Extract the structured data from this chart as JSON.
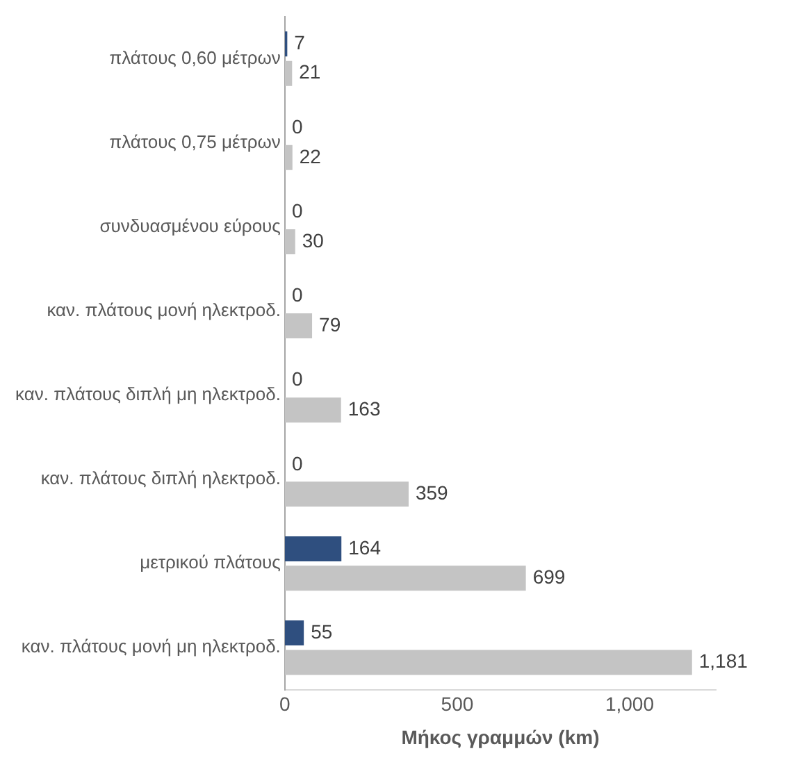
{
  "chart_data": {
    "type": "bar",
    "orientation": "horizontal",
    "xlabel": "Μήκος γραμμών (km)",
    "categories": [
      "πλάτους 0,60 μέτρων",
      "πλάτους 0,75 μέτρων",
      "συνδυασμένου εύρους",
      "καν. πλάτους μονή ηλεκτροδ.",
      "καν. πλάτους διπλή μη ηλεκτροδ.",
      "καν. πλάτους διπλή ηλεκτροδ.",
      "μετρικού πλάτους",
      "καν. πλάτους μονή μη ηλεκτροδ."
    ],
    "series": [
      {
        "color": "#2f4f7f",
        "values": [
          7,
          0,
          0,
          0,
          0,
          0,
          164,
          55
        ],
        "value_labels": [
          "7",
          "0",
          "0",
          "0",
          "0",
          "0",
          "164",
          "55"
        ]
      },
      {
        "color": "#c4c4c4",
        "values": [
          21,
          22,
          30,
          79,
          163,
          359,
          699,
          1181
        ],
        "value_labels": [
          "21",
          "22",
          "30",
          "79",
          "163",
          "359",
          "699",
          "1,181"
        ]
      }
    ],
    "xlim": [
      0,
      1250
    ],
    "xticks": [
      0,
      500,
      {
        "value": 1000,
        "label": "1,000"
      }
    ],
    "grid": false,
    "legend": false
  }
}
